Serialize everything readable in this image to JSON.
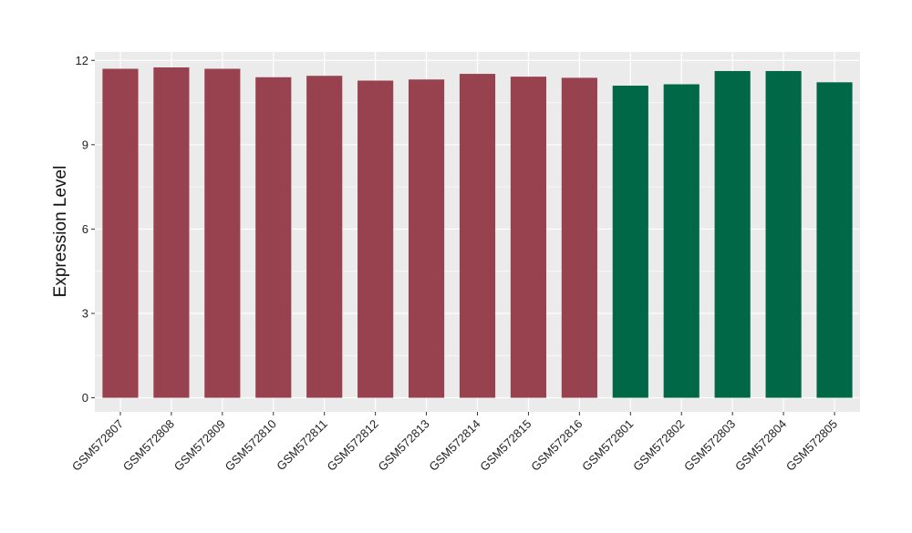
{
  "chart_data": {
    "type": "bar",
    "title": "",
    "xlabel": "",
    "ylabel": "Expression Level",
    "ylim": [
      -0.5,
      12.3
    ],
    "yticks": [
      0,
      3,
      6,
      9,
      12
    ],
    "grid": true,
    "legend": "none",
    "categories": [
      "GSM572807",
      "GSM572808",
      "GSM572809",
      "GSM572810",
      "GSM572811",
      "GSM572812",
      "GSM572813",
      "GSM572814",
      "GSM572815",
      "GSM572816",
      "GSM572801",
      "GSM572802",
      "GSM572803",
      "GSM572804",
      "GSM572805"
    ],
    "values": [
      11.7,
      11.75,
      11.7,
      11.4,
      11.45,
      11.28,
      11.32,
      11.52,
      11.42,
      11.38,
      11.1,
      11.15,
      11.62,
      11.62,
      11.22
    ],
    "group_of_bar": [
      0,
      0,
      0,
      0,
      0,
      0,
      0,
      0,
      0,
      0,
      1,
      1,
      1,
      1,
      1
    ],
    "group_colors": [
      "#98414f",
      "#006847"
    ],
    "panel_color": "#ebebeb",
    "grid_color": "#ffffff"
  }
}
